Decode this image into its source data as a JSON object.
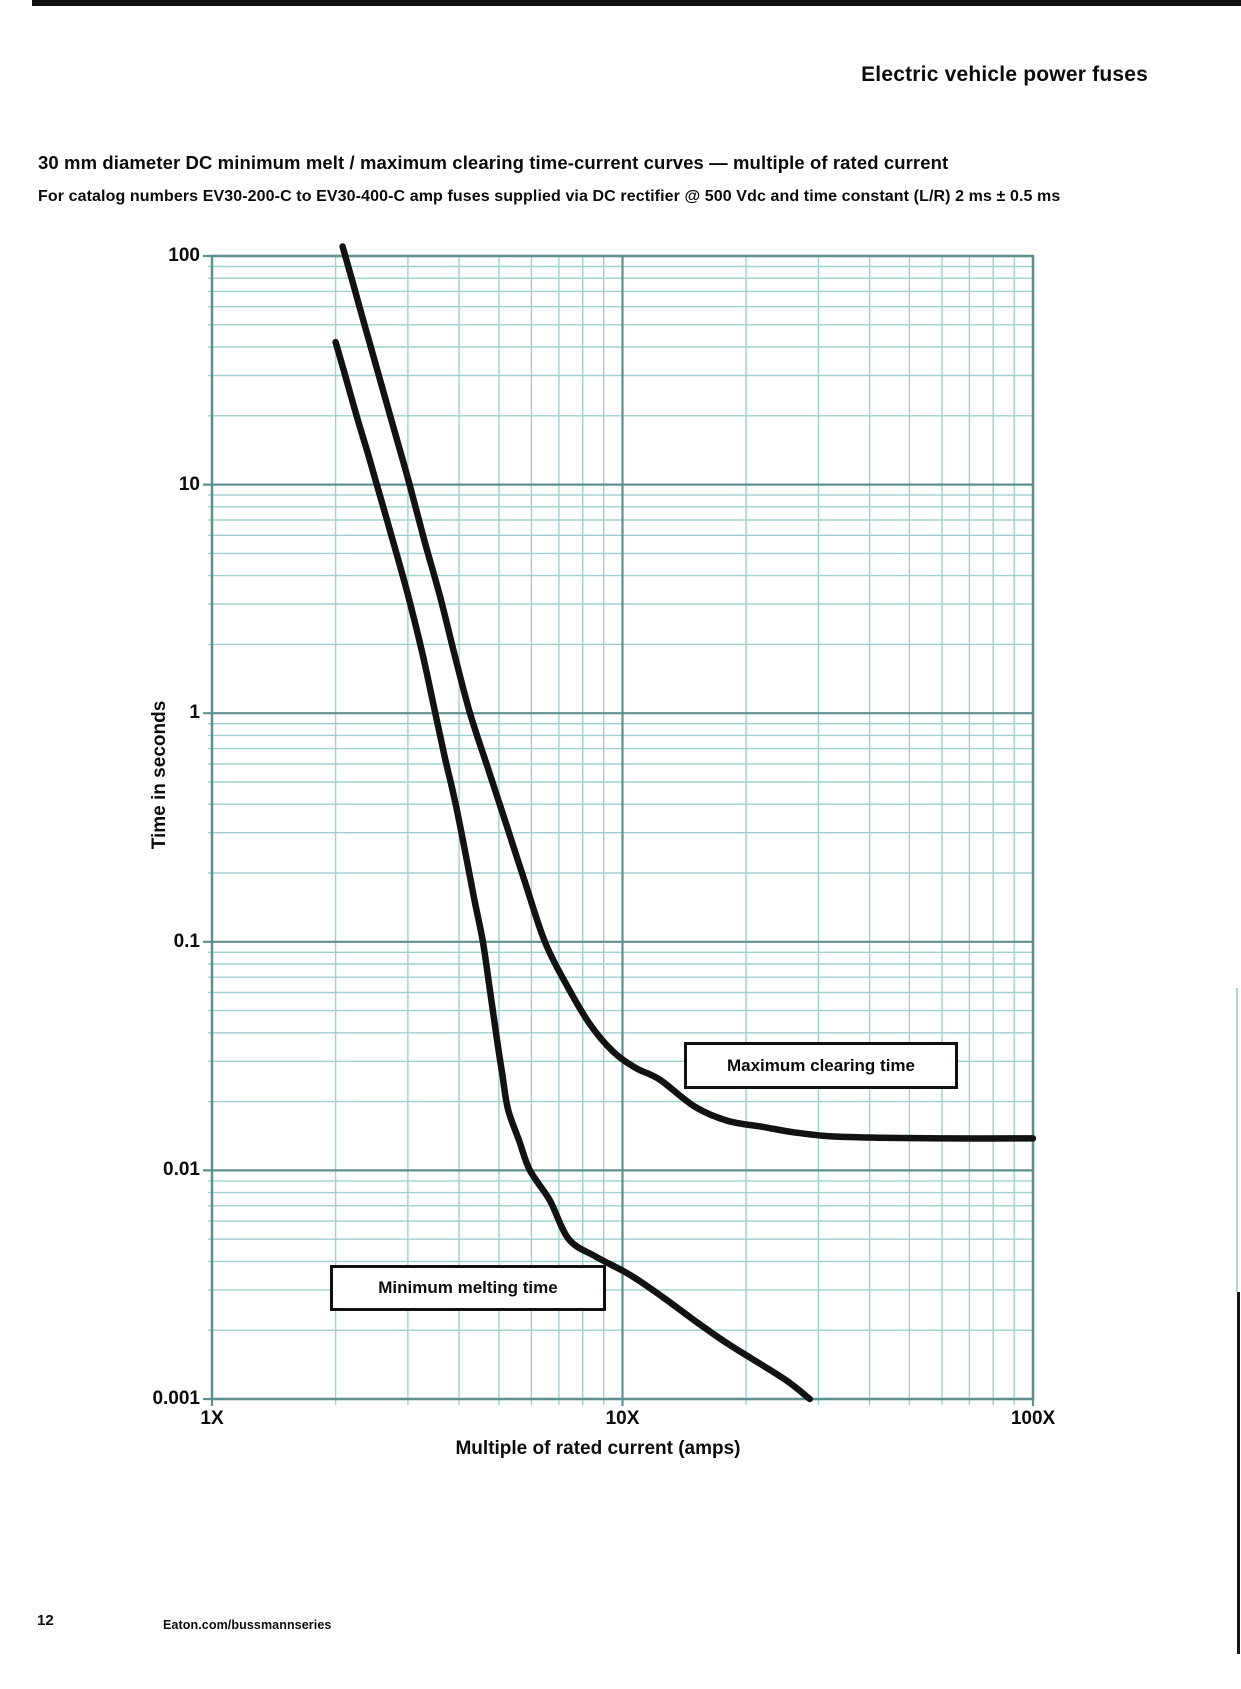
{
  "page": {
    "header": "Electric vehicle power fuses",
    "footer": {
      "page_number": "12",
      "website": "Eaton.com/bussmannseries"
    }
  },
  "chart_data": {
    "type": "line",
    "title": "30 mm diameter DC minimum melt / maximum clearing time-current curves — multiple of rated current",
    "subtitle": "For catalog numbers EV30-200-C to EV30-400-C amp fuses supplied via DC rectifier @ 500 Vdc and time constant (L/R) 2 ms ± 0.5 ms",
    "xlabel": "Multiple of rated current (amps)",
    "ylabel": "Time in seconds",
    "x_scale": "log",
    "y_scale": "log",
    "xlim": [
      1,
      100
    ],
    "ylim": [
      0.001,
      100
    ],
    "grid": true,
    "x_ticks": [
      {
        "value": 1,
        "label": "1X"
      },
      {
        "value": 10,
        "label": "10X"
      },
      {
        "value": 100,
        "label": "100X"
      }
    ],
    "y_ticks": [
      {
        "value": 100,
        "label": "100"
      },
      {
        "value": 10,
        "label": "10"
      },
      {
        "value": 1,
        "label": "1"
      },
      {
        "value": 0.1,
        "label": "0.1"
      },
      {
        "value": 0.01,
        "label": "0.01"
      },
      {
        "value": 0.001,
        "label": "0.001"
      }
    ],
    "colors": {
      "curve": "#121212",
      "grid_minor": "#9fd0d0",
      "grid_major": "#5e9090",
      "annotation_border": "#101010"
    },
    "series": [
      {
        "name": "Maximum clearing time",
        "points": [
          [
            2.08,
            110
          ],
          [
            2.2,
            77
          ],
          [
            2.4,
            44
          ],
          [
            2.6,
            26.5
          ],
          [
            2.8,
            16.5
          ],
          [
            3.03,
            10
          ],
          [
            3.3,
            5.6
          ],
          [
            3.6,
            3.2
          ],
          [
            3.9,
            1.8
          ],
          [
            4.25,
            1
          ],
          [
            4.7,
            0.575
          ],
          [
            5.2,
            0.33
          ],
          [
            5.8,
            0.18
          ],
          [
            6.47,
            0.1
          ],
          [
            7.3,
            0.065
          ],
          [
            8.3,
            0.044
          ],
          [
            9.5,
            0.033
          ],
          [
            10.8,
            0.028
          ],
          [
            12.3,
            0.025
          ],
          [
            15,
            0.019
          ],
          [
            18,
            0.0165
          ],
          [
            22,
            0.0155
          ],
          [
            26,
            0.0147
          ],
          [
            32,
            0.0141
          ],
          [
            42,
            0.0139
          ],
          [
            60,
            0.0138
          ],
          [
            100,
            0.0138
          ]
        ]
      },
      {
        "name": "Minimum melting time",
        "points": [
          [
            2.0,
            42
          ],
          [
            2.1,
            31
          ],
          [
            2.25,
            20
          ],
          [
            2.4,
            13.6
          ],
          [
            2.52,
            10
          ],
          [
            2.75,
            5.8
          ],
          [
            3.0,
            3.3
          ],
          [
            3.25,
            1.85
          ],
          [
            3.5,
            1
          ],
          [
            3.7,
            0.63
          ],
          [
            3.9,
            0.42
          ],
          [
            4.1,
            0.27
          ],
          [
            4.35,
            0.155
          ],
          [
            4.57,
            0.1
          ],
          [
            4.75,
            0.062
          ],
          [
            4.95,
            0.037
          ],
          [
            5.1,
            0.026
          ],
          [
            5.26,
            0.0185
          ],
          [
            5.6,
            0.0135
          ],
          [
            5.95,
            0.01
          ],
          [
            6.65,
            0.0074
          ],
          [
            7.4,
            0.005
          ],
          [
            8.6,
            0.0042
          ],
          [
            10.4,
            0.0035
          ],
          [
            12.5,
            0.0028
          ],
          [
            15,
            0.0022
          ],
          [
            18,
            0.00175
          ],
          [
            22,
            0.0014
          ],
          [
            25.5,
            0.00118
          ],
          [
            28.6,
            0.001
          ]
        ]
      }
    ]
  }
}
